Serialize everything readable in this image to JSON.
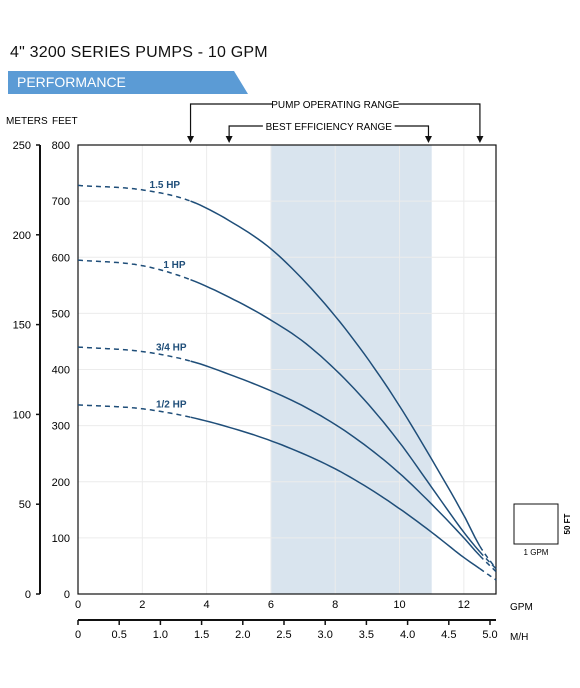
{
  "header": {
    "title": "4\" 3200 SERIES PUMPS - 10 GPM",
    "banner": "PERFORMANCE",
    "banner_color": "#5b9bd5"
  },
  "chart_data": {
    "type": "line",
    "xlabel": "GPM",
    "x2label": "M/H",
    "ylabel_left": "METERS",
    "ylabel_right": "FEET",
    "xlim": [
      0,
      13
    ],
    "ylim_feet": [
      0,
      800
    ],
    "ylim_meters": [
      0,
      250
    ],
    "x_ticks": [
      "0",
      "2",
      "4",
      "6",
      "8",
      "10",
      "12"
    ],
    "x2_ticks": [
      "0",
      "0.5",
      "1.0",
      "1.5",
      "2.0",
      "2.5",
      "3.0",
      "3.5",
      "4.0",
      "4.5",
      "5.0"
    ],
    "y_feet_ticks": [
      "0",
      "100",
      "200",
      "300",
      "400",
      "500",
      "600",
      "700",
      "800"
    ],
    "y_meter_ticks": [
      "0",
      "50",
      "100",
      "150",
      "200",
      "250"
    ],
    "grid": true,
    "pump_operating_range_label": "PUMP OPERATING RANGE",
    "pump_operating_range_gpm": [
      3.5,
      12.5
    ],
    "best_efficiency_range_label": "BEST EFFICIENCY RANGE",
    "best_efficiency_range_gpm": [
      4.7,
      10.9
    ],
    "shaded_region_gpm": [
      6,
      11
    ],
    "shade_color": "#d9e4ee",
    "line_color": "#1f4e79",
    "series": [
      {
        "name": "1.5 HP",
        "solid_from": 3.5,
        "solid_to": 12.5,
        "x": [
          0,
          2,
          3.5,
          5,
          6,
          7,
          8,
          9,
          10,
          11,
          12,
          12.5,
          13
        ],
        "y": [
          728,
          720,
          700,
          655,
          615,
          560,
          495,
          420,
          335,
          240,
          140,
          85,
          45
        ]
      },
      {
        "name": "1 HP",
        "solid_from": 3.5,
        "solid_to": 12.5,
        "x": [
          0,
          2,
          3.5,
          5,
          6,
          7,
          8,
          9,
          10,
          11,
          12,
          12.5,
          13
        ],
        "y": [
          595,
          585,
          560,
          520,
          488,
          450,
          400,
          340,
          270,
          190,
          110,
          75,
          45
        ]
      },
      {
        "name": "3/4 HP",
        "solid_from": 3.5,
        "solid_to": 12.5,
        "x": [
          0,
          2,
          3.5,
          5,
          6,
          7,
          8,
          9,
          10,
          11,
          12,
          12.5,
          13
        ],
        "y": [
          440,
          432,
          415,
          385,
          362,
          335,
          302,
          262,
          215,
          160,
          100,
          68,
          40
        ]
      },
      {
        "name": "1/2 HP",
        "solid_from": 3.5,
        "solid_to": 12.5,
        "x": [
          0,
          2,
          3.5,
          5,
          6,
          7,
          8,
          9,
          10,
          11,
          12,
          12.5,
          13
        ],
        "y": [
          337,
          330,
          315,
          292,
          273,
          250,
          223,
          190,
          152,
          110,
          65,
          45,
          25
        ]
      }
    ],
    "inset": {
      "height_label": "50 FT",
      "width_label": "1 GPM"
    }
  }
}
